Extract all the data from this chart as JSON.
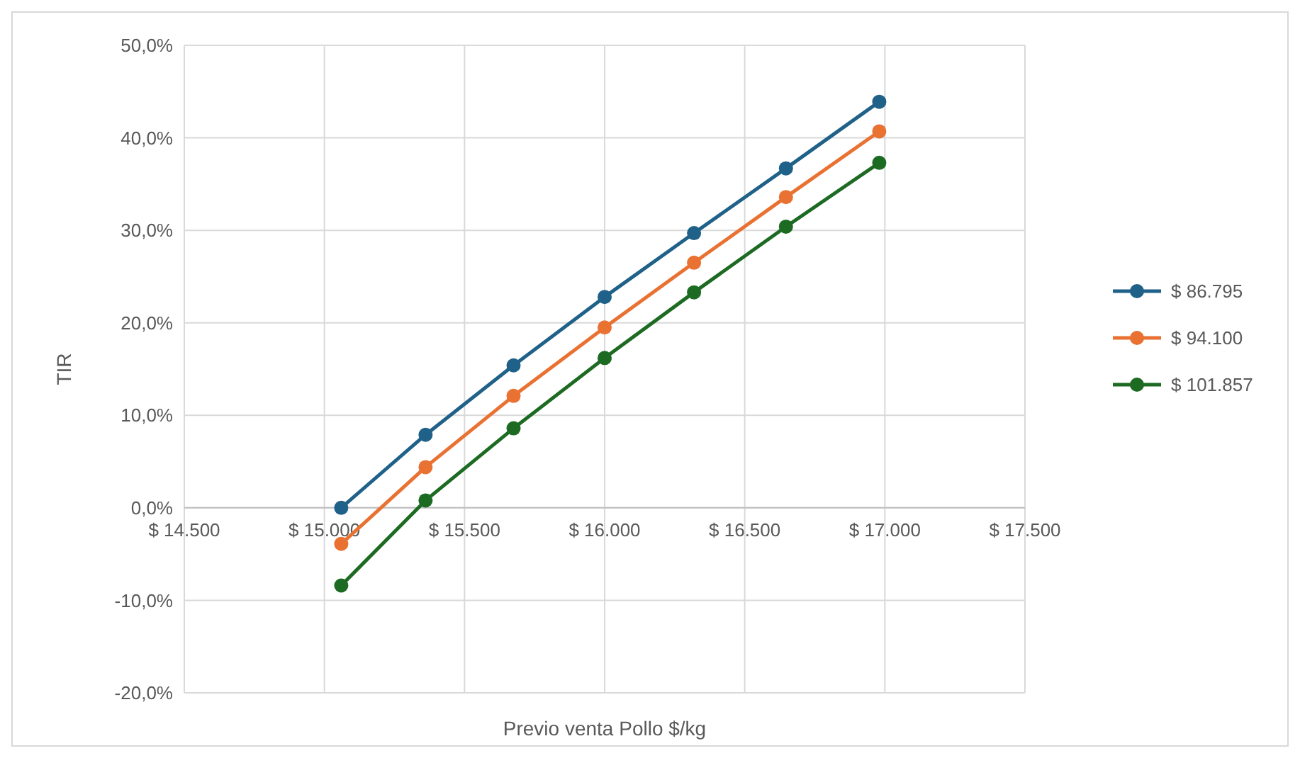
{
  "chart_data": {
    "type": "line",
    "xlabel": "Previo venta Pollo $/kg",
    "ylabel": "TIR",
    "x": [
      15060,
      15361,
      15675,
      16000,
      16319,
      16647,
      16980
    ],
    "series": [
      {
        "name": "$ 86.795",
        "color": "#1f6188",
        "values": [
          0,
          7.9,
          15.4,
          22.8,
          29.7,
          36.7,
          43.9
        ]
      },
      {
        "name": "$ 94.100",
        "color": "#e97132",
        "values": [
          -3.9,
          4.4,
          12.1,
          19.5,
          26.5,
          33.6,
          40.7
        ]
      },
      {
        "name": "$ 101.857",
        "color": "#1d6b23",
        "values": [
          -8.4,
          0.8,
          8.6,
          16.2,
          23.3,
          30.4,
          37.3
        ]
      }
    ],
    "xlim": [
      14500,
      17500
    ],
    "xticks": [
      {
        "value": 14500,
        "label": "$ 14.500"
      },
      {
        "value": 15000,
        "label": "$ 15.000"
      },
      {
        "value": 15500,
        "label": "$ 15.500"
      },
      {
        "value": 16000,
        "label": "$ 16.000"
      },
      {
        "value": 16500,
        "label": "$ 16.500"
      },
      {
        "value": 17000,
        "label": "$ 17.000"
      },
      {
        "value": 17500,
        "label": "$ 17.500"
      }
    ],
    "ylim": [
      -20,
      50
    ],
    "yticks": [
      {
        "value": -20,
        "label": "-20,0%"
      },
      {
        "value": -10,
        "label": "-10,0%"
      },
      {
        "value": 0,
        "label": "0,0%"
      },
      {
        "value": 10,
        "label": "10,0%"
      },
      {
        "value": 20,
        "label": "20,0%"
      },
      {
        "value": 30,
        "label": "30,0%"
      },
      {
        "value": 40,
        "label": "40,0%"
      },
      {
        "value": 50,
        "label": "50,0%"
      }
    ],
    "grid": true,
    "legend": "right",
    "marker": "circle",
    "line_style": "solid"
  }
}
